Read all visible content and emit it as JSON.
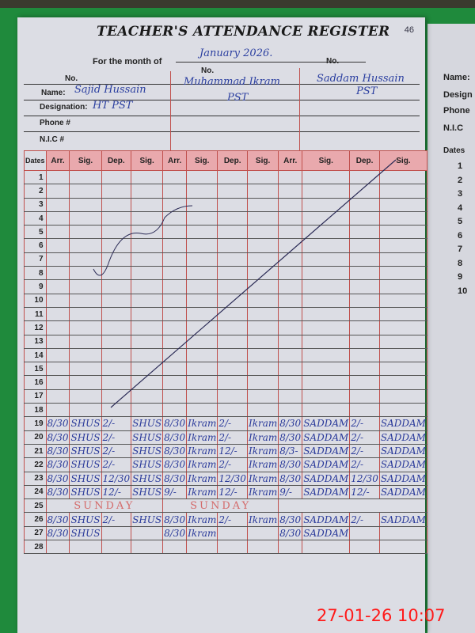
{
  "register": {
    "title": "TEACHER'S ATTENDANCE REGISTER",
    "page_number": "46",
    "month_label": "For the month of",
    "month_value": "January 2026.",
    "no_label": "No.",
    "name_label": "Name:",
    "designation_label": "Designation:",
    "phone_label": "Phone #",
    "nic_label": "N.I.C #",
    "teachers": [
      {
        "name": "Sajid Hussain",
        "designation": "HT PST"
      },
      {
        "name": "Muhammad Ikram",
        "designation": "PST"
      },
      {
        "name": "Saddam Hussain",
        "designation": "PST"
      }
    ],
    "columns": [
      "Dates",
      "Arr.",
      "Sig.",
      "Dep.",
      "Sig.",
      "Arr.",
      "Sig.",
      "Dep.",
      "Sig.",
      "Arr.",
      "Sig.",
      "Dep.",
      "Sig."
    ],
    "rows": [
      {
        "date": "1"
      },
      {
        "date": "2"
      },
      {
        "date": "3"
      },
      {
        "date": "4"
      },
      {
        "date": "5"
      },
      {
        "date": "6"
      },
      {
        "date": "7"
      },
      {
        "date": "8"
      },
      {
        "date": "9"
      },
      {
        "date": "10"
      },
      {
        "date": "11"
      },
      {
        "date": "12"
      },
      {
        "date": "13"
      },
      {
        "date": "14"
      },
      {
        "date": "15"
      },
      {
        "date": "16"
      },
      {
        "date": "17"
      },
      {
        "date": "18"
      },
      {
        "date": "19",
        "cells": [
          "8/30",
          "SHUS",
          "2/-",
          "SHUS",
          "8/30",
          "Ikram",
          "2/-",
          "Ikram",
          "8/30",
          "SADDAM",
          "2/-",
          "SADDAM"
        ]
      },
      {
        "date": "20",
        "cells": [
          "8/30",
          "SHUS",
          "2/-",
          "SHUS",
          "8/30",
          "Ikram",
          "2/-",
          "Ikram",
          "8/30",
          "SADDAM",
          "2/-",
          "SADDAM"
        ]
      },
      {
        "date": "21",
        "cells": [
          "8/30",
          "SHUS",
          "2/-",
          "SHUS",
          "8/30",
          "Ikram",
          "12/-",
          "Ikram",
          "8/3-",
          "SADDAM",
          "2/-",
          "SADDAM"
        ]
      },
      {
        "date": "22",
        "cells": [
          "8/30",
          "SHUS",
          "2/-",
          "SHUS",
          "8/30",
          "Ikram",
          "2/-",
          "Ikram",
          "8/30",
          "SADDAM",
          "2/-",
          "SADDAM"
        ]
      },
      {
        "date": "23",
        "cells": [
          "8/30",
          "SHUS",
          "12/30",
          "SHUS",
          "8/30",
          "Ikram",
          "12/30",
          "Ikram",
          "8/30",
          "SADDAM",
          "12/30",
          "SADDAM"
        ]
      },
      {
        "date": "24",
        "cells": [
          "8/30",
          "SHUS",
          "12/-",
          "SHUS",
          "9/-",
          "Ikram",
          "12/-",
          "Ikram",
          "9/-",
          "SADDAM",
          "12/-",
          "SADDAM"
        ]
      },
      {
        "date": "25",
        "sunday": "SUNDAY"
      },
      {
        "date": "26",
        "cells": [
          "8/30",
          "SHUS",
          "2/-",
          "SHUS",
          "8/30",
          "Ikram",
          "2/-",
          "Ikram",
          "8/30",
          "SADDAM",
          "2/-",
          "SADDAM"
        ]
      },
      {
        "date": "27",
        "cells": [
          "8/30",
          "SHUS",
          "",
          "",
          "8/30",
          "Ikram",
          "",
          "",
          "8/30",
          "SADDAM",
          "",
          ""
        ]
      },
      {
        "date": "28"
      }
    ],
    "next_page": {
      "name_label": "Name:",
      "designation_label": "Design",
      "phone_label": "Phone",
      "nic_label": "N.I.C",
      "dates_label": "Dates",
      "dates": [
        "1",
        "2",
        "3",
        "4",
        "5",
        "6",
        "7",
        "8",
        "9",
        "10"
      ]
    }
  },
  "camera_timestamp": "27-01-26  10:07",
  "colors": {
    "header_pink": "#e9a9ad",
    "rule_red": "#c0504d",
    "ink_blue": "#2b3fa0",
    "timestamp_red": "#ff1a1a"
  }
}
